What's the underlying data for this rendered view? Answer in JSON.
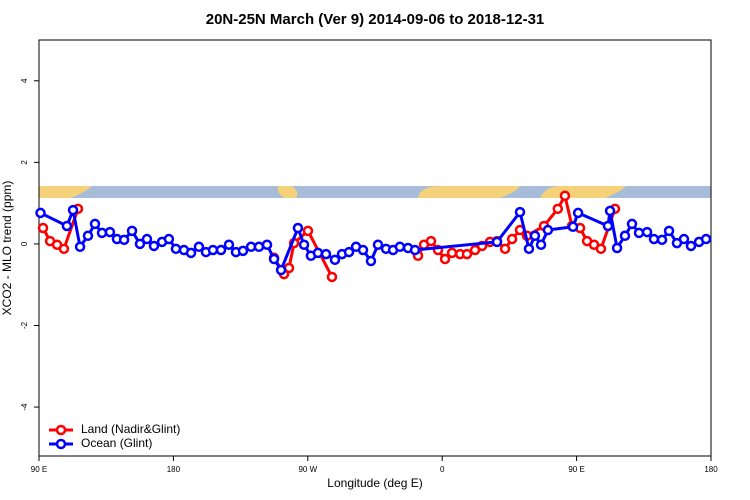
{
  "chart_data": {
    "type": "line",
    "title": "20N-25N March (Ver 9)   2014-09-06 to 2018-12-31",
    "xlabel": "Longitude (deg E)",
    "ylabel": "XCO2 - MLO trend (ppm)",
    "xlim": [
      90,
      540
    ],
    "ylim": [
      -5.2,
      5
    ],
    "xticks": [
      {
        "value": 90,
        "label": "90 E"
      },
      180,
      {
        "value": 270,
        "label": "90 W"
      },
      {
        "value": 360,
        "label": "0"
      },
      {
        "value": 450,
        "label": "90 E"
      },
      {
        "value": 540,
        "label": "180"
      }
    ],
    "yticks": [
      -4,
      -2,
      0,
      2,
      4
    ],
    "legend": "lower left",
    "series": [
      {
        "name": "Land (Nadir&Glint)",
        "color": "#ff0000",
        "x": [
          92.7,
          97.4,
          102.1,
          106.7,
          116.1,
          null,
          247.4,
          254.1,
          257.4,
          260.8,
          270.1,
          286.2,
          null,
          343.8,
          347.8,
          352.5,
          357.2,
          361.9,
          366.6,
          372,
          376.6,
          382,
          386.7,
          392,
          396.7,
          402.1,
          406.8,
          412.1,
          416.8,
          428.2,
          437.4,
          442.2,
          446.9,
          452.3,
          457,
          461.7,
          466.3,
          475.7
        ],
        "values": [
          0.39,
          0.07,
          -0.02,
          -0.12,
          0.86,
          null,
          -0.34,
          -0.74,
          -0.59,
          0.02,
          0.32,
          -0.81,
          null,
          -0.29,
          -0.02,
          0.07,
          -0.15,
          -0.37,
          -0.22,
          -0.25,
          -0.25,
          -0.15,
          -0.05,
          0.05,
          0.07,
          -0.12,
          0.12,
          0.34,
          0.2,
          0.44,
          0.86,
          1.18,
          0.44,
          0.39,
          0.07,
          -0.02,
          -0.12,
          0.86
        ]
      },
      {
        "name": "Ocean (Glint)",
        "color": "#0000ff",
        "x": [
          91,
          108.7,
          112.8,
          117.5,
          122.8,
          127.5,
          132.2,
          137.5,
          142.2,
          147,
          152.3,
          157.6,
          162.3,
          167,
          172.4,
          177,
          181.7,
          187.1,
          191.8,
          197.1,
          201.8,
          206.5,
          211.9,
          217.2,
          221.9,
          226.6,
          232,
          237.3,
          242.7,
          247.4,
          252.1,
          263.4,
          267.5,
          272.1,
          276.8,
          282.2,
          288.2,
          292.9,
          297.6,
          302.3,
          307,
          312.3,
          317,
          322.4,
          327.1,
          331.7,
          337.1,
          341.8,
          396.7,
          412.1,
          418.1,
          422.1,
          426.2,
          430.8,
          447.6,
          451,
          471,
          472.4,
          477.1,
          482.4,
          487.1,
          491.8,
          497.2,
          501.8,
          507.2,
          511.9,
          517.2,
          521.9,
          526.6,
          532,
          536.7
        ],
        "values": [
          0.76,
          0.44,
          0.83,
          -0.07,
          0.2,
          0.49,
          0.27,
          0.29,
          0.12,
          0.1,
          0.32,
          0,
          0.12,
          -0.05,
          0.05,
          0.12,
          -0.12,
          -0.15,
          -0.22,
          -0.07,
          -0.2,
          -0.15,
          -0.15,
          -0.02,
          -0.2,
          -0.17,
          -0.07,
          -0.07,
          -0.02,
          -0.37,
          -0.64,
          0.39,
          -0.02,
          -0.29,
          -0.22,
          -0.25,
          -0.39,
          -0.25,
          -0.2,
          -0.07,
          -0.15,
          -0.42,
          -0.02,
          -0.12,
          -0.15,
          -0.07,
          -0.1,
          -0.15,
          0.05,
          0.78,
          -0.12,
          0.2,
          -0.02,
          0.34,
          0.42,
          0.76,
          0.44,
          0.81,
          -0.1,
          0.2,
          0.49,
          0.27,
          0.29,
          0.12,
          0.1,
          0.32,
          0.02,
          0.12,
          -0.05,
          0.05,
          0.12
        ]
      }
    ]
  }
}
